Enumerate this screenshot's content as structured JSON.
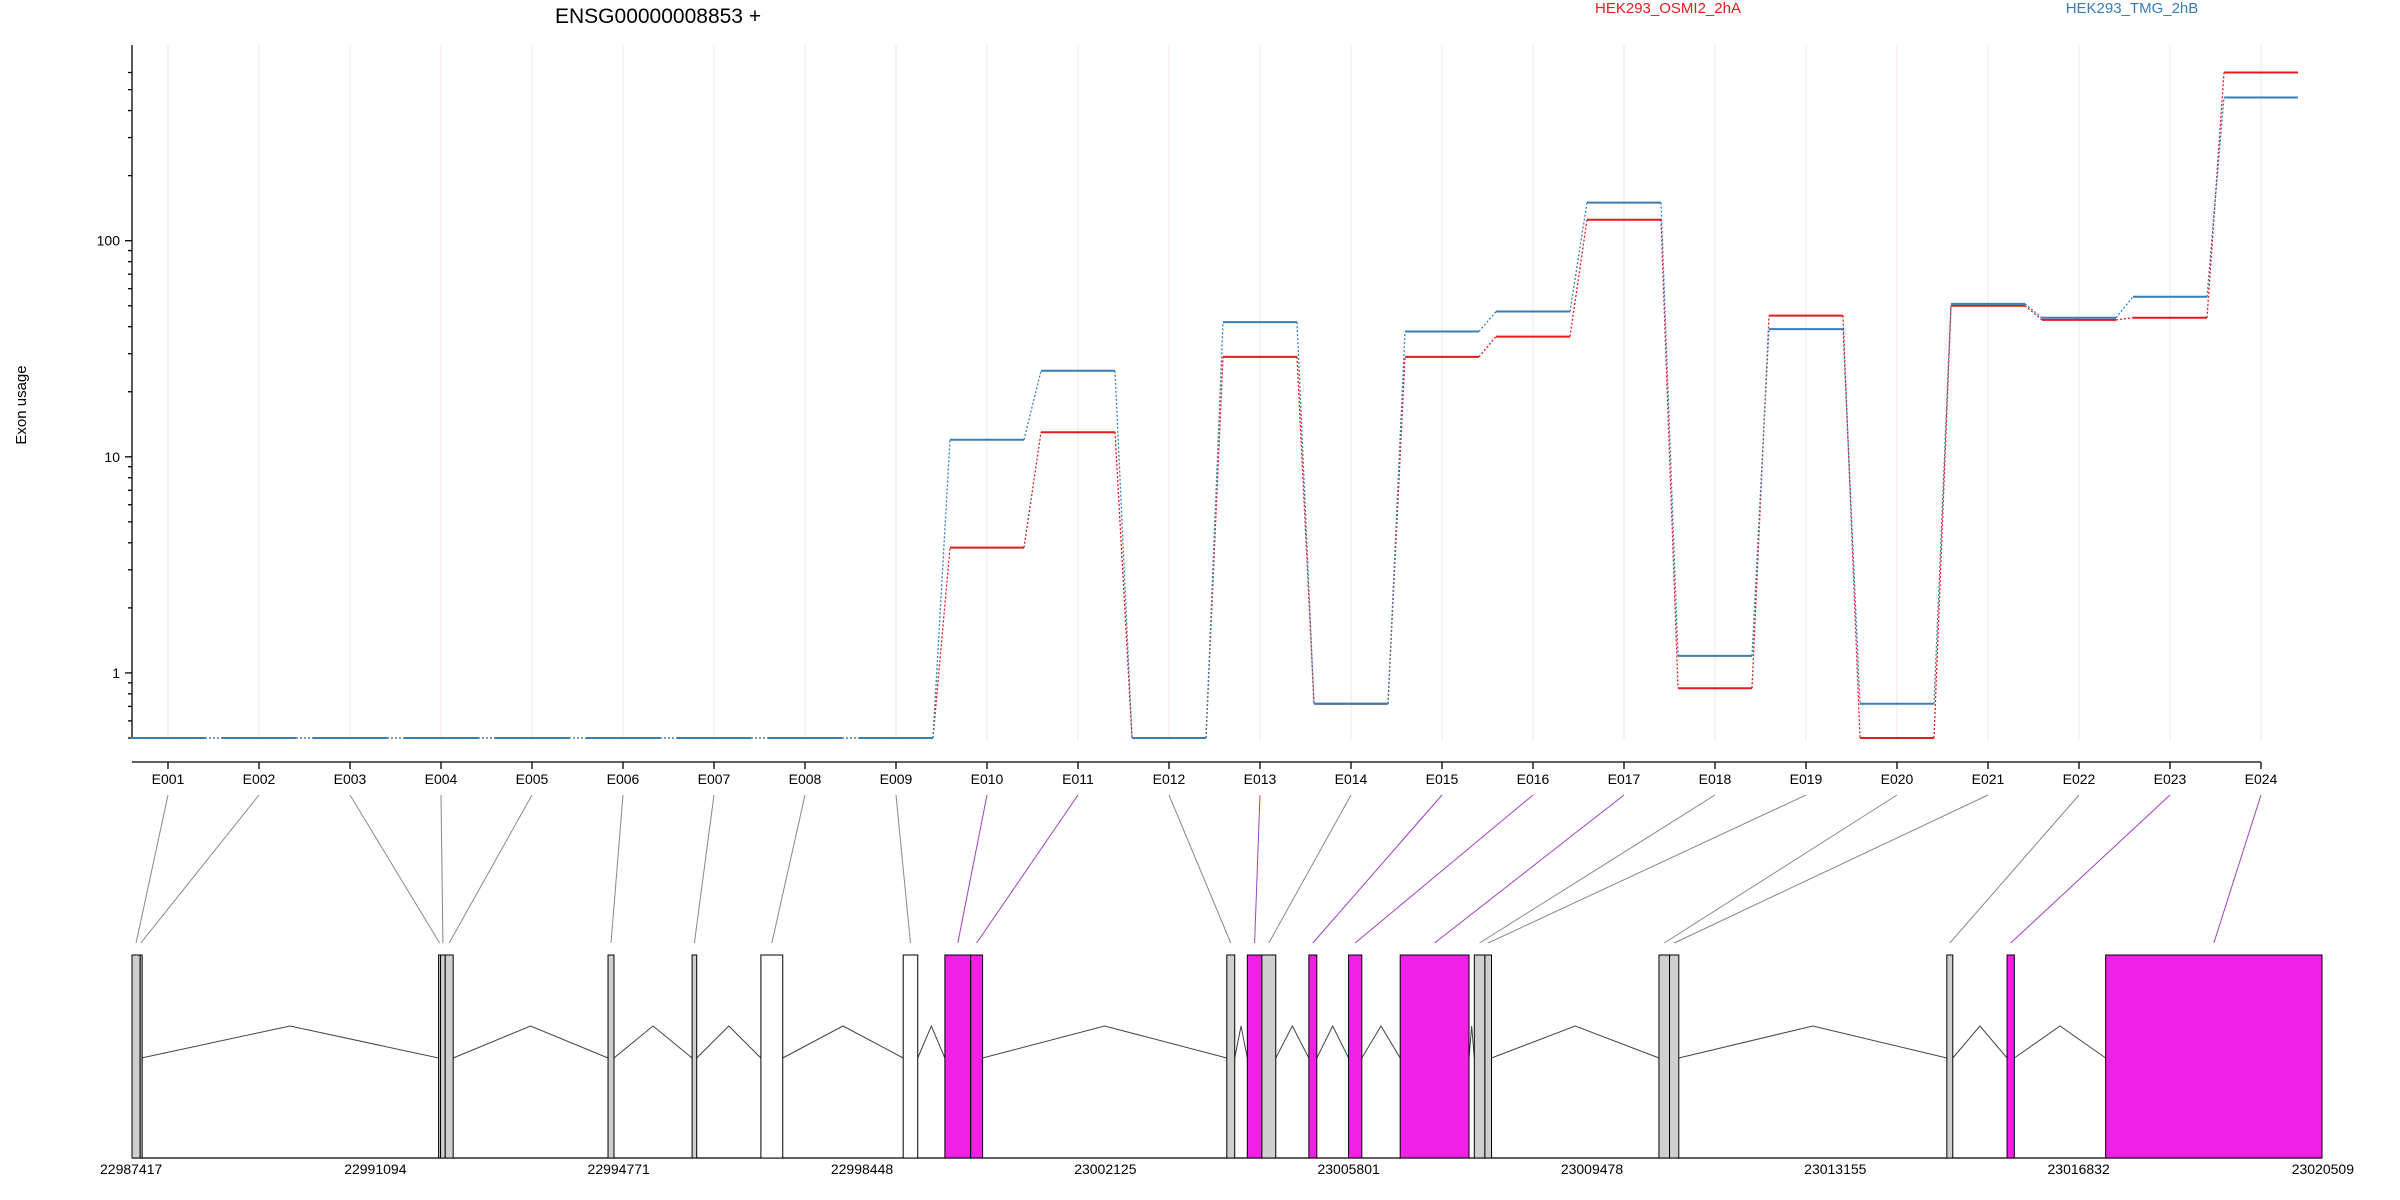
{
  "chart_data": {
    "type": "line",
    "title": "ENSG00000008853 +",
    "ylabel": "Exon usage",
    "y_scale": "log",
    "y_ticks": [
      1,
      10,
      100
    ],
    "ylim": [
      0.5,
      650
    ],
    "grid": "vertical only",
    "legend_placement": "top-right",
    "categories": [
      "E001",
      "E002",
      "E003",
      "E004",
      "E005",
      "E006",
      "E007",
      "E008",
      "E009",
      "E010",
      "E011",
      "E012",
      "E013",
      "E014",
      "E015",
      "E016",
      "E017",
      "E018",
      "E019",
      "E020",
      "E021",
      "E022",
      "E023",
      "E024"
    ],
    "series": [
      {
        "name": "HEK293_OSMI2_2hA",
        "color": "#e41a1c",
        "values": [
          0.5,
          0.5,
          0.5,
          0.5,
          0.5,
          0.5,
          0.5,
          0.5,
          0.5,
          3.8,
          13,
          0.5,
          29,
          0.72,
          29,
          36,
          125,
          0.85,
          45,
          0.5,
          50,
          43,
          44,
          600
        ]
      },
      {
        "name": "HEK293_TMG_2hB",
        "color": "#377eb8",
        "values": [
          0.5,
          0.5,
          0.5,
          0.5,
          0.5,
          0.5,
          0.5,
          0.5,
          0.5,
          12,
          25,
          0.5,
          42,
          0.72,
          38,
          47,
          150,
          1.2,
          39,
          0.72,
          51,
          44,
          55,
          460
        ]
      }
    ],
    "gene_model": {
      "coordinate_ticks": [
        "22987417",
        "22991094",
        "22994771",
        "22998448",
        "23002125",
        "23005801",
        "23009478",
        "23013155",
        "23016832",
        "23020509"
      ],
      "coordinate_range": [
        22987417,
        23020509
      ],
      "highlight_color": "#f020e4",
      "exon_bins": [
        {
          "id": "E001",
          "start": 22987417,
          "end": 22987540,
          "highlight": false
        },
        {
          "id": "E002",
          "start": 22987540,
          "end": 22987560,
          "highlight": false
        },
        {
          "id": "E003",
          "start": 22992050,
          "end": 22992080,
          "highlight": false
        },
        {
          "id": "E004",
          "start": 22992080,
          "end": 22992150,
          "highlight": false
        },
        {
          "id": "E005",
          "start": 22992150,
          "end": 22992270,
          "highlight": false
        },
        {
          "id": "E006",
          "start": 22994610,
          "end": 22994700,
          "highlight": false
        },
        {
          "id": "E007",
          "start": 22995880,
          "end": 22995950,
          "highlight": false
        },
        {
          "id": "E008",
          "start": 22996920,
          "end": 22997250,
          "highlight": false
        },
        {
          "id": "E009",
          "start": 22999070,
          "end": 22999290,
          "highlight": false
        },
        {
          "id": "E010",
          "start": 22999700,
          "end": 23000090,
          "highlight": true
        },
        {
          "id": "E011",
          "start": 23000090,
          "end": 23000270,
          "highlight": true
        },
        {
          "id": "E012",
          "start": 23003960,
          "end": 23004080,
          "highlight": false
        },
        {
          "id": "E013",
          "start": 23004270,
          "end": 23004490,
          "highlight": true
        },
        {
          "id": "E014",
          "start": 23004490,
          "end": 23004700,
          "highlight": false
        },
        {
          "id": "E015",
          "start": 23005200,
          "end": 23005320,
          "highlight": true
        },
        {
          "id": "E016",
          "start": 23005800,
          "end": 23006000,
          "highlight": true
        },
        {
          "id": "E017",
          "start": 23006580,
          "end": 23007620,
          "highlight": true
        },
        {
          "id": "E018",
          "start": 23007700,
          "end": 23007860,
          "highlight": false
        },
        {
          "id": "E019",
          "start": 23007860,
          "end": 23007960,
          "highlight": false
        },
        {
          "id": "E020",
          "start": 23010490,
          "end": 23010650,
          "highlight": false
        },
        {
          "id": "E021",
          "start": 23010650,
          "end": 23010790,
          "highlight": false
        },
        {
          "id": "E022",
          "start": 23014840,
          "end": 23014930,
          "highlight": false
        },
        {
          "id": "E023",
          "start": 23015750,
          "end": 23015860,
          "highlight": true
        },
        {
          "id": "E024",
          "start": 23017240,
          "end": 23020509,
          "highlight": true
        }
      ]
    }
  }
}
